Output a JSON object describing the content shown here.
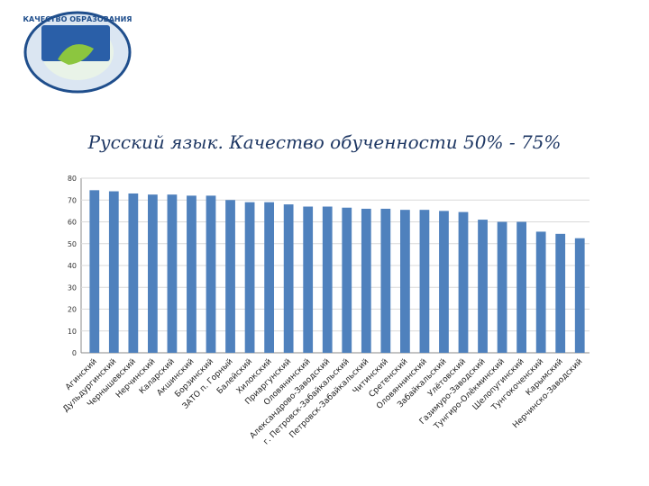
{
  "logo": {
    "text": "КАЧЕСТВО ОБРАЗОВАНИЯ",
    "colors": {
      "ring": "#1f4e8c",
      "inner": "#e9f3e8",
      "accent": "#8cc63f"
    }
  },
  "chart_data": {
    "type": "bar",
    "title": "Русский язык. Качество обученности 50% - 75%",
    "xlabel": "",
    "ylabel": "",
    "ylim": [
      0,
      80
    ],
    "yticks": [
      0,
      10,
      20,
      30,
      40,
      50,
      60,
      70,
      80
    ],
    "grid": true,
    "color": "#4f81bd",
    "categories": [
      "Агинский",
      "Дульдургинский",
      "Чернышевский",
      "Нерчинский",
      "Каларский",
      "Акшинский",
      "Борзинский",
      "ЗАТО п. Горный",
      "Балейский",
      "Хилокский",
      "Приаргунский",
      "Оловянинский",
      "Александрово-Заводский",
      "г. Петровск-Забайкальский",
      "Петровск-Забайкальский",
      "Читинский",
      "Сретенский",
      "Оловяннинский",
      "Забайкальский",
      "Улётовский",
      "Газимуро-Заводский",
      "Тунгиро-Олёкминский",
      "Шелопугинский",
      "Тунгокоченский",
      "Карымский",
      "Нерчинско-Заводский"
    ],
    "values": [
      74.5,
      74,
      73,
      72.5,
      72.5,
      72,
      72,
      70,
      69,
      69,
      68,
      67,
      67,
      66.5,
      66,
      66,
      65.5,
      65.5,
      65,
      64.5,
      61,
      60,
      60,
      55.5,
      54.5,
      52.5
    ]
  }
}
